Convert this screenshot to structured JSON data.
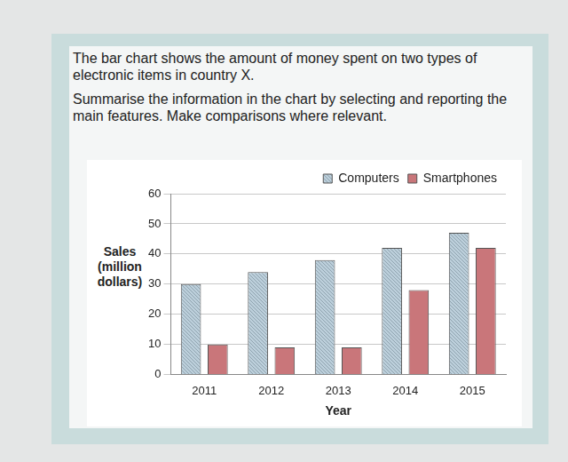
{
  "chart_data": {
    "type": "bar",
    "title": "The bar chart shows the amount of money spent on two types of electronic items in country X.",
    "subtitle": "Summarise the information in the chart by selecting and reporting the main features. Make comparisons where relevant.",
    "x_label": "Year",
    "y_label": "Sales (million dollars)",
    "categories": [
      "2011",
      "2012",
      "2013",
      "2014",
      "2015"
    ],
    "series": [
      {
        "name": "Computers",
        "color": "#bccfdb",
        "values": [
          30,
          34,
          38,
          42,
          47
        ]
      },
      {
        "name": "Smartphones",
        "color": "#c9767a",
        "values": [
          10,
          9,
          9,
          28,
          42
        ]
      }
    ],
    "ylim": [
      0,
      60
    ],
    "yticks": [
      0,
      10,
      20,
      30,
      40,
      50,
      60
    ],
    "grid": true,
    "legend": "top-right"
  }
}
